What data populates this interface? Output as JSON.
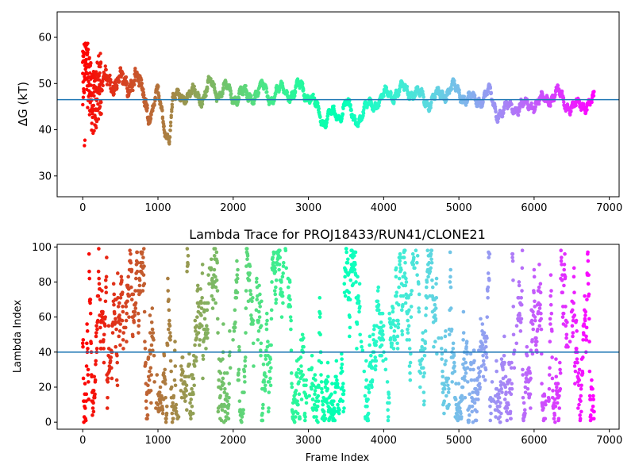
{
  "chart_data": [
    {
      "type": "scatter",
      "title": "",
      "xlabel": "",
      "ylabel": "ΔG (kT)",
      "xlim": [
        -340,
        7130
      ],
      "ylim": [
        25.5,
        65.5
      ],
      "xticks": [
        0,
        1000,
        2000,
        3000,
        4000,
        5000,
        6000,
        7000
      ],
      "yticks": [
        30,
        40,
        50,
        60
      ],
      "hline": 46.5,
      "hline_color": "#1f77b4",
      "colormap": "rainbow (reversed along frame index)",
      "series_profile": {
        "x": [
          0,
          50,
          100,
          150,
          200,
          250,
          300,
          400,
          500,
          600,
          700,
          800,
          900,
          1000,
          1100,
          1150,
          1200,
          1300,
          1400,
          1500,
          1600,
          1700,
          1800,
          1900,
          2000,
          2100,
          2200,
          2300,
          2400,
          2500,
          2600,
          2700,
          2800,
          2900,
          3000,
          3100,
          3200,
          3300,
          3400,
          3500,
          3600,
          3700,
          3800,
          3900,
          4000,
          4100,
          4200,
          4300,
          4400,
          4500,
          4600,
          4700,
          4800,
          4900,
          5000,
          5100,
          5200,
          5300,
          5400,
          5500,
          5600,
          5700,
          5800,
          5900,
          6000,
          6100,
          6200,
          6300,
          6400,
          6500,
          6600,
          6700,
          6800
        ],
        "y": [
          50,
          52,
          48,
          46,
          50,
          49,
          51,
          50,
          51,
          49,
          52,
          48,
          43,
          48,
          40,
          38,
          46,
          48,
          47,
          48,
          47,
          50,
          48,
          49,
          47,
          48,
          47,
          48,
          49,
          47,
          48,
          49,
          47,
          50,
          47,
          45,
          42,
          43,
          43,
          46,
          42,
          43,
          45,
          46,
          47,
          48,
          48,
          49,
          48,
          47,
          46,
          47,
          48,
          49,
          48,
          47,
          46,
          47,
          48,
          44,
          44,
          45,
          45,
          45,
          46,
          46,
          47,
          48,
          46,
          45,
          45,
          46,
          46
        ]
      }
    },
    {
      "type": "scatter",
      "title": "Lambda Trace for PROJ18433/RUN41/CLONE21",
      "xlabel": "Frame Index",
      "ylabel": "Lambda Index",
      "xlim": [
        -340,
        7130
      ],
      "ylim": [
        -4,
        101.5
      ],
      "xticks": [
        0,
        1000,
        2000,
        3000,
        4000,
        5000,
        6000,
        7000
      ],
      "yticks": [
        0,
        20,
        40,
        60,
        80,
        100
      ],
      "hline": 40,
      "hline_color": "#1f77b4",
      "colormap": "rainbow (reversed along frame index)",
      "value_range": [
        0,
        99
      ],
      "frame_range": [
        0,
        6800
      ]
    }
  ]
}
